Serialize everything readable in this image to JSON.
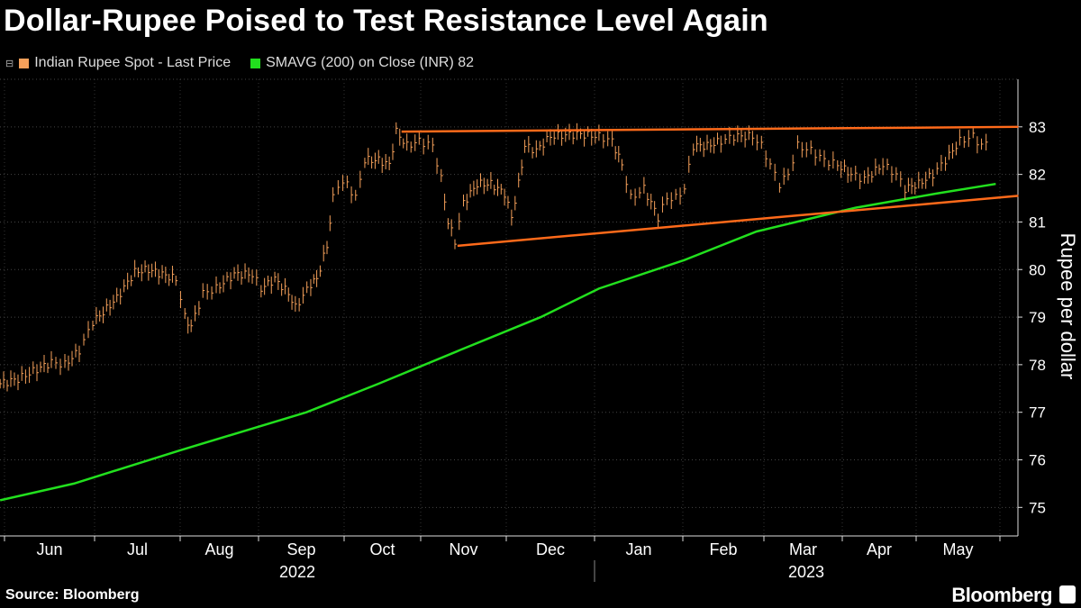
{
  "title": "Dollar-Rupee Poised to Test Resistance Level Again",
  "legend": [
    {
      "label": "Indian Rupee Spot - Last Price",
      "color": "#f5a05a"
    },
    {
      "label": "SMAVG (200)  on Close (INR) 82",
      "color": "#22e01e"
    }
  ],
  "source": "Source: Bloomberg",
  "brand": "Bloomberg",
  "chart_data": {
    "type": "line",
    "title": "Dollar-Rupee Poised to Test Resistance Level Again",
    "ylabel": "Rupee per dollar",
    "xlabel": "",
    "ylim": [
      74.4,
      84
    ],
    "yticks": [
      75,
      76,
      77,
      78,
      79,
      80,
      81,
      82,
      83
    ],
    "x_units": "months since Jun 1 2022",
    "xlim": [
      -0.05,
      12.22
    ],
    "month_labels": [
      "Jun",
      "Jul",
      "Aug",
      "Sep",
      "Oct",
      "Nov",
      "Dec",
      "Jan",
      "Feb",
      "Mar",
      "Apr",
      "May"
    ],
    "year_labels": [
      "2022",
      "2023"
    ],
    "grid": true,
    "legend_position": "top-left",
    "series": [
      {
        "name": "Indian Rupee Spot - Last Price",
        "style": "bars",
        "color": "#f5a05a",
        "x": [
          -0.05,
          0.15,
          0.36,
          0.52,
          0.67,
          0.83,
          0.98,
          1.1,
          1.26,
          1.47,
          1.63,
          1.79,
          1.95,
          2.06,
          2.14,
          2.29,
          2.46,
          2.69,
          2.92,
          3.03,
          3.19,
          3.35,
          3.43,
          3.61,
          3.68,
          3.8,
          3.87,
          3.93,
          4.04,
          4.15,
          4.27,
          4.45,
          4.59,
          4.68,
          4.82,
          4.98,
          5.14,
          5.24,
          5.32,
          5.4,
          5.5,
          5.66,
          5.82,
          5.98,
          6.06,
          6.14,
          6.21,
          6.34,
          6.5,
          6.8,
          7.05,
          7.2,
          7.31,
          7.41,
          7.56,
          7.72,
          7.82,
          7.92,
          8.02,
          8.13,
          8.3,
          8.47,
          8.63,
          8.86,
          8.97,
          9.08,
          9.2,
          9.31,
          9.43,
          9.6,
          9.77,
          9.94,
          10.12,
          10.3,
          10.55,
          10.73,
          10.85,
          11.03,
          11.2,
          11.35,
          11.52,
          11.68,
          11.78,
          11.89
        ],
        "y": [
          77.6,
          77.7,
          77.9,
          78.05,
          78.0,
          78.3,
          78.9,
          79.1,
          79.4,
          79.95,
          80.0,
          79.9,
          79.8,
          79.0,
          78.8,
          79.5,
          79.6,
          79.9,
          79.9,
          79.6,
          79.8,
          79.5,
          79.2,
          79.7,
          79.8,
          80.5,
          81.5,
          81.8,
          81.8,
          81.5,
          82.3,
          82.3,
          82.2,
          82.9,
          82.6,
          82.7,
          82.6,
          81.9,
          81.0,
          80.6,
          81.4,
          81.8,
          81.8,
          81.6,
          81.1,
          81.8,
          82.6,
          82.5,
          82.8,
          82.85,
          82.8,
          82.7,
          82.2,
          81.5,
          81.7,
          81.1,
          81.5,
          81.5,
          81.7,
          82.6,
          82.6,
          82.7,
          82.8,
          82.8,
          82.6,
          82.2,
          81.8,
          82.0,
          82.6,
          82.5,
          82.3,
          82.2,
          82.0,
          81.9,
          82.2,
          82.0,
          81.7,
          81.8,
          82.0,
          82.3,
          82.7,
          82.8,
          82.6,
          82.7
        ]
      },
      {
        "name": "SMAVG (200) on Close (INR)",
        "style": "line",
        "color": "#22e01e",
        "x": [
          -0.05,
          0.77,
          2.0,
          3.56,
          4.45,
          5.45,
          6.39,
          7.05,
          8.02,
          8.91,
          10.18,
          11.25,
          11.95
        ],
        "y": [
          75.15,
          75.5,
          76.2,
          77.0,
          77.6,
          78.3,
          79.0,
          79.6,
          80.2,
          80.8,
          81.3,
          81.6,
          81.8
        ]
      },
      {
        "name": "Resistance",
        "style": "trendline",
        "color": "#ff6a1a",
        "x": [
          4.75,
          12.22
        ],
        "y": [
          82.9,
          83.0
        ]
      },
      {
        "name": "Support",
        "style": "trendline",
        "color": "#ff6a1a",
        "x": [
          5.43,
          12.22
        ],
        "y": [
          80.5,
          81.55
        ]
      }
    ]
  }
}
